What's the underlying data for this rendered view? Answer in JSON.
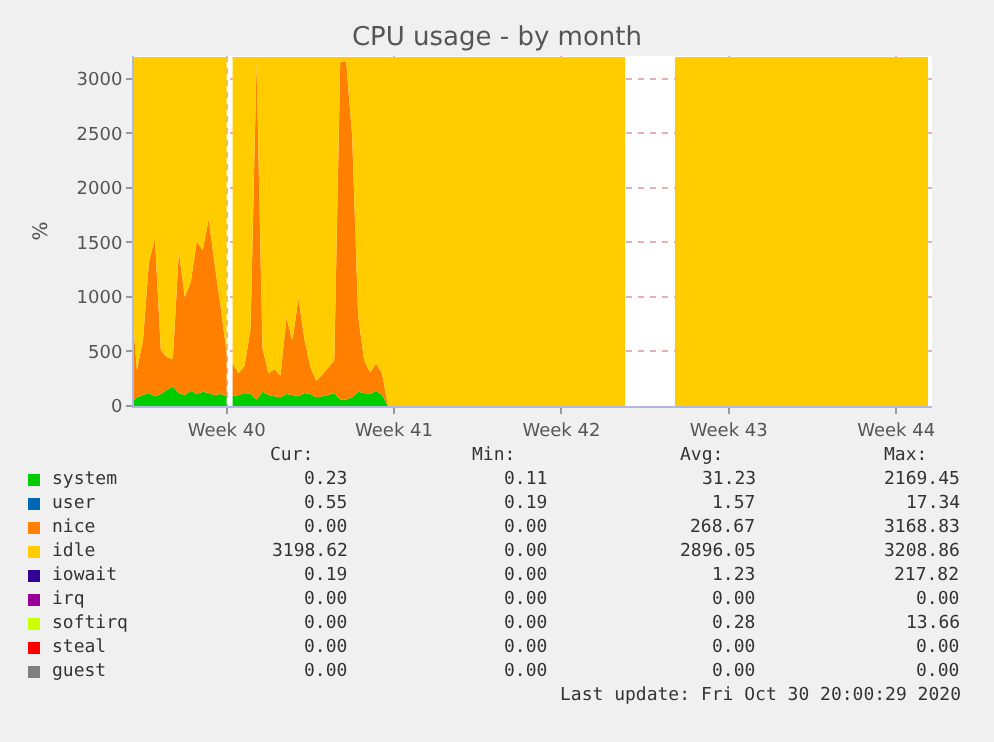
{
  "chart_data": {
    "type": "area",
    "stacked": true,
    "title": "CPU usage - by month",
    "ylabel": "%",
    "x": [
      "2020-09-27T15:00",
      "2020-09-27T18:00",
      "2020-09-28T00:00",
      "2020-09-28T06:00",
      "2020-09-28T12:00",
      "2020-09-28T18:00",
      "2020-09-29T00:00",
      "2020-09-29T06:00",
      "2020-09-29T12:00",
      "2020-09-29T18:00",
      "2020-09-30T00:00",
      "2020-09-30T06:00",
      "2020-09-30T12:00",
      "2020-09-30T18:00",
      "2020-10-01T00:00",
      "2020-10-01T06:00",
      "2020-10-01T12:00",
      "2020-10-01T14:00",
      "2020-10-01T18:00",
      "2020-10-02T00:00",
      "2020-10-02T06:00",
      "2020-10-02T12:00",
      "2020-10-02T18:00",
      "2020-10-03T00:00",
      "2020-10-03T06:00",
      "2020-10-03T12:00",
      "2020-10-03T18:00",
      "2020-10-04T00:00",
      "2020-10-04T06:00",
      "2020-10-04T12:00",
      "2020-10-04T18:00",
      "2020-10-05T00:00",
      "2020-10-05T06:00",
      "2020-10-05T12:00",
      "2020-10-05T18:00",
      "2020-10-06T00:00",
      "2020-10-06T06:00",
      "2020-10-06T12:00",
      "2020-10-06T18:00",
      "2020-10-07T00:00",
      "2020-10-07T06:00",
      "2020-10-07T12:00",
      "2020-10-07T18:00",
      "2020-10-08T00:00",
      "2020-10-08T06:00",
      "2020-10-18T04:00",
      "2020-10-19T00:00",
      "2020-10-20T06:00",
      "2020-10-30T20:00"
    ],
    "series": [
      {
        "name": "system",
        "color": "#00cc00",
        "values": [
          60,
          80,
          100,
          120,
          90,
          110,
          150,
          180,
          120,
          100,
          140,
          110,
          130,
          120,
          100,
          110,
          90,
          null,
          90,
          100,
          120,
          110,
          60,
          130,
          100,
          90,
          80,
          110,
          100,
          90,
          120,
          110,
          80,
          90,
          100,
          120,
          60,
          60,
          80,
          130,
          120,
          110,
          140,
          100,
          0,
          0,
          null,
          null,
          null
        ]
      },
      {
        "name": "user",
        "color": "#0066b3",
        "values": [
          null,
          null,
          null,
          null,
          null,
          null,
          null,
          null,
          null,
          null,
          null,
          null,
          null,
          null,
          null,
          null,
          null,
          null,
          null,
          null,
          null,
          null,
          null,
          null,
          null,
          null,
          null,
          null,
          null,
          null,
          null,
          null,
          null,
          null,
          null,
          null,
          null,
          null,
          null,
          null,
          null,
          null,
          null,
          null,
          null,
          null,
          null,
          null,
          null
        ]
      },
      {
        "name": "nice",
        "color": "#ff8000",
        "values": [
          600,
          250,
          500,
          1200,
          1450,
          400,
          300,
          250,
          1300,
          900,
          1000,
          1400,
          1300,
          1600,
          1200,
          800,
          400,
          null,
          300,
          200,
          250,
          600,
          3100,
          400,
          200,
          250,
          200,
          700,
          500,
          900,
          500,
          250,
          150,
          200,
          250,
          300,
          3100,
          3100,
          2400,
          700,
          300,
          200,
          250,
          200,
          0,
          0,
          null,
          null,
          null
        ]
      },
      {
        "name": "idle",
        "color": "#ffcc00",
        "values": [
          2540,
          2870,
          2600,
          1880,
          1660,
          2690,
          2750,
          2770,
          1780,
          2200,
          2060,
          1690,
          1770,
          1480,
          1900,
          2290,
          2710,
          null,
          2810,
          2900,
          2830,
          2490,
          40,
          2670,
          2900,
          2860,
          2920,
          2390,
          2600,
          2210,
          2580,
          2840,
          2970,
          2910,
          2850,
          2780,
          40,
          40,
          720,
          2370,
          2780,
          2890,
          2810,
          2900,
          3200,
          3200,
          null,
          3200,
          3200
        ]
      },
      {
        "name": "iowait",
        "color": "#330099",
        "values": [
          null,
          null,
          null,
          null,
          null,
          null,
          null,
          null,
          null,
          null,
          null,
          null,
          null,
          null,
          null,
          null,
          null,
          null,
          null,
          null,
          null,
          null,
          null,
          null,
          null,
          null,
          null,
          null,
          null,
          null,
          null,
          null,
          null,
          null,
          null,
          null,
          null,
          null,
          null,
          null,
          null,
          null,
          null,
          null,
          null,
          null,
          null,
          null,
          null
        ]
      },
      {
        "name": "irq",
        "color": "#990099",
        "values": [
          null,
          null,
          null,
          null,
          null,
          null,
          null,
          null,
          null,
          null,
          null,
          null,
          null,
          null,
          null,
          null,
          null,
          null,
          null,
          null,
          null,
          null,
          null,
          null,
          null,
          null,
          null,
          null,
          null,
          null,
          null,
          null,
          null,
          null,
          null,
          null,
          null,
          null,
          null,
          null,
          null,
          null,
          null,
          null,
          null,
          null,
          null,
          null,
          null
        ]
      },
      {
        "name": "softirq",
        "color": "#ccff00",
        "values": [
          null,
          null,
          null,
          null,
          null,
          null,
          null,
          null,
          null,
          null,
          null,
          null,
          null,
          null,
          null,
          null,
          null,
          null,
          null,
          null,
          null,
          null,
          null,
          null,
          null,
          null,
          null,
          null,
          null,
          null,
          null,
          null,
          null,
          null,
          null,
          null,
          null,
          null,
          null,
          null,
          null,
          null,
          null,
          null,
          null,
          null,
          null,
          null,
          null
        ]
      },
      {
        "name": "steal",
        "color": "#ff0000",
        "values": [
          null,
          null,
          null,
          null,
          null,
          null,
          null,
          null,
          null,
          null,
          null,
          null,
          null,
          null,
          null,
          null,
          null,
          null,
          null,
          null,
          null,
          null,
          null,
          null,
          null,
          null,
          null,
          null,
          null,
          null,
          null,
          null,
          null,
          null,
          null,
          null,
          null,
          null,
          null,
          null,
          null,
          null,
          null,
          null,
          null,
          null,
          null,
          null,
          null
        ]
      },
      {
        "name": "guest",
        "color": "#808080",
        "values": [
          null,
          null,
          null,
          null,
          null,
          null,
          null,
          null,
          null,
          null,
          null,
          null,
          null,
          null,
          null,
          null,
          null,
          null,
          null,
          null,
          null,
          null,
          null,
          null,
          null,
          null,
          null,
          null,
          null,
          null,
          null,
          null,
          null,
          null,
          null,
          null,
          null,
          null,
          null,
          null,
          null,
          null,
          null,
          null,
          null,
          null,
          null,
          null,
          null
        ]
      }
    ],
    "xlim": [
      "2020-09-27T15:00",
      "2020-10-31T00:00"
    ],
    "xticks": [
      {
        "value": "2020-10-01T12:00",
        "label": "Week 40"
      },
      {
        "value": "2020-10-08T12:00",
        "label": "Week 41"
      },
      {
        "value": "2020-10-15T12:00",
        "label": "Week 42"
      },
      {
        "value": "2020-10-22T12:00",
        "label": "Week 43"
      },
      {
        "value": "2020-10-29T12:00",
        "label": "Week 44"
      }
    ],
    "ylim": [
      0,
      3210
    ],
    "yticks": [
      0,
      500,
      1000,
      1500,
      2000,
      2500,
      3000
    ],
    "grid": true,
    "legend": "bottom",
    "annotations": [
      "Cur:",
      "Min:",
      "Avg:",
      "Max:",
      "0.23",
      "0.11",
      "31.23",
      "2169.45",
      "0.55",
      "0.19",
      "1.57",
      "17.34",
      "0.00",
      "0.00",
      "268.67",
      "3168.83",
      "3198.62",
      "0.00",
      "2896.05",
      "3208.86",
      "0.19",
      "0.00",
      "1.23",
      "217.82",
      "0.00",
      "0.00",
      "0.00",
      "0.00",
      "0.00",
      "0.00",
      "0.28",
      "13.66",
      "0.00",
      "0.00",
      "0.00",
      "0.00",
      "0.00",
      "0.00",
      "0.00",
      "0.00",
      "Last update: Fri Oct 30 20:00:29 2020"
    ]
  }
}
